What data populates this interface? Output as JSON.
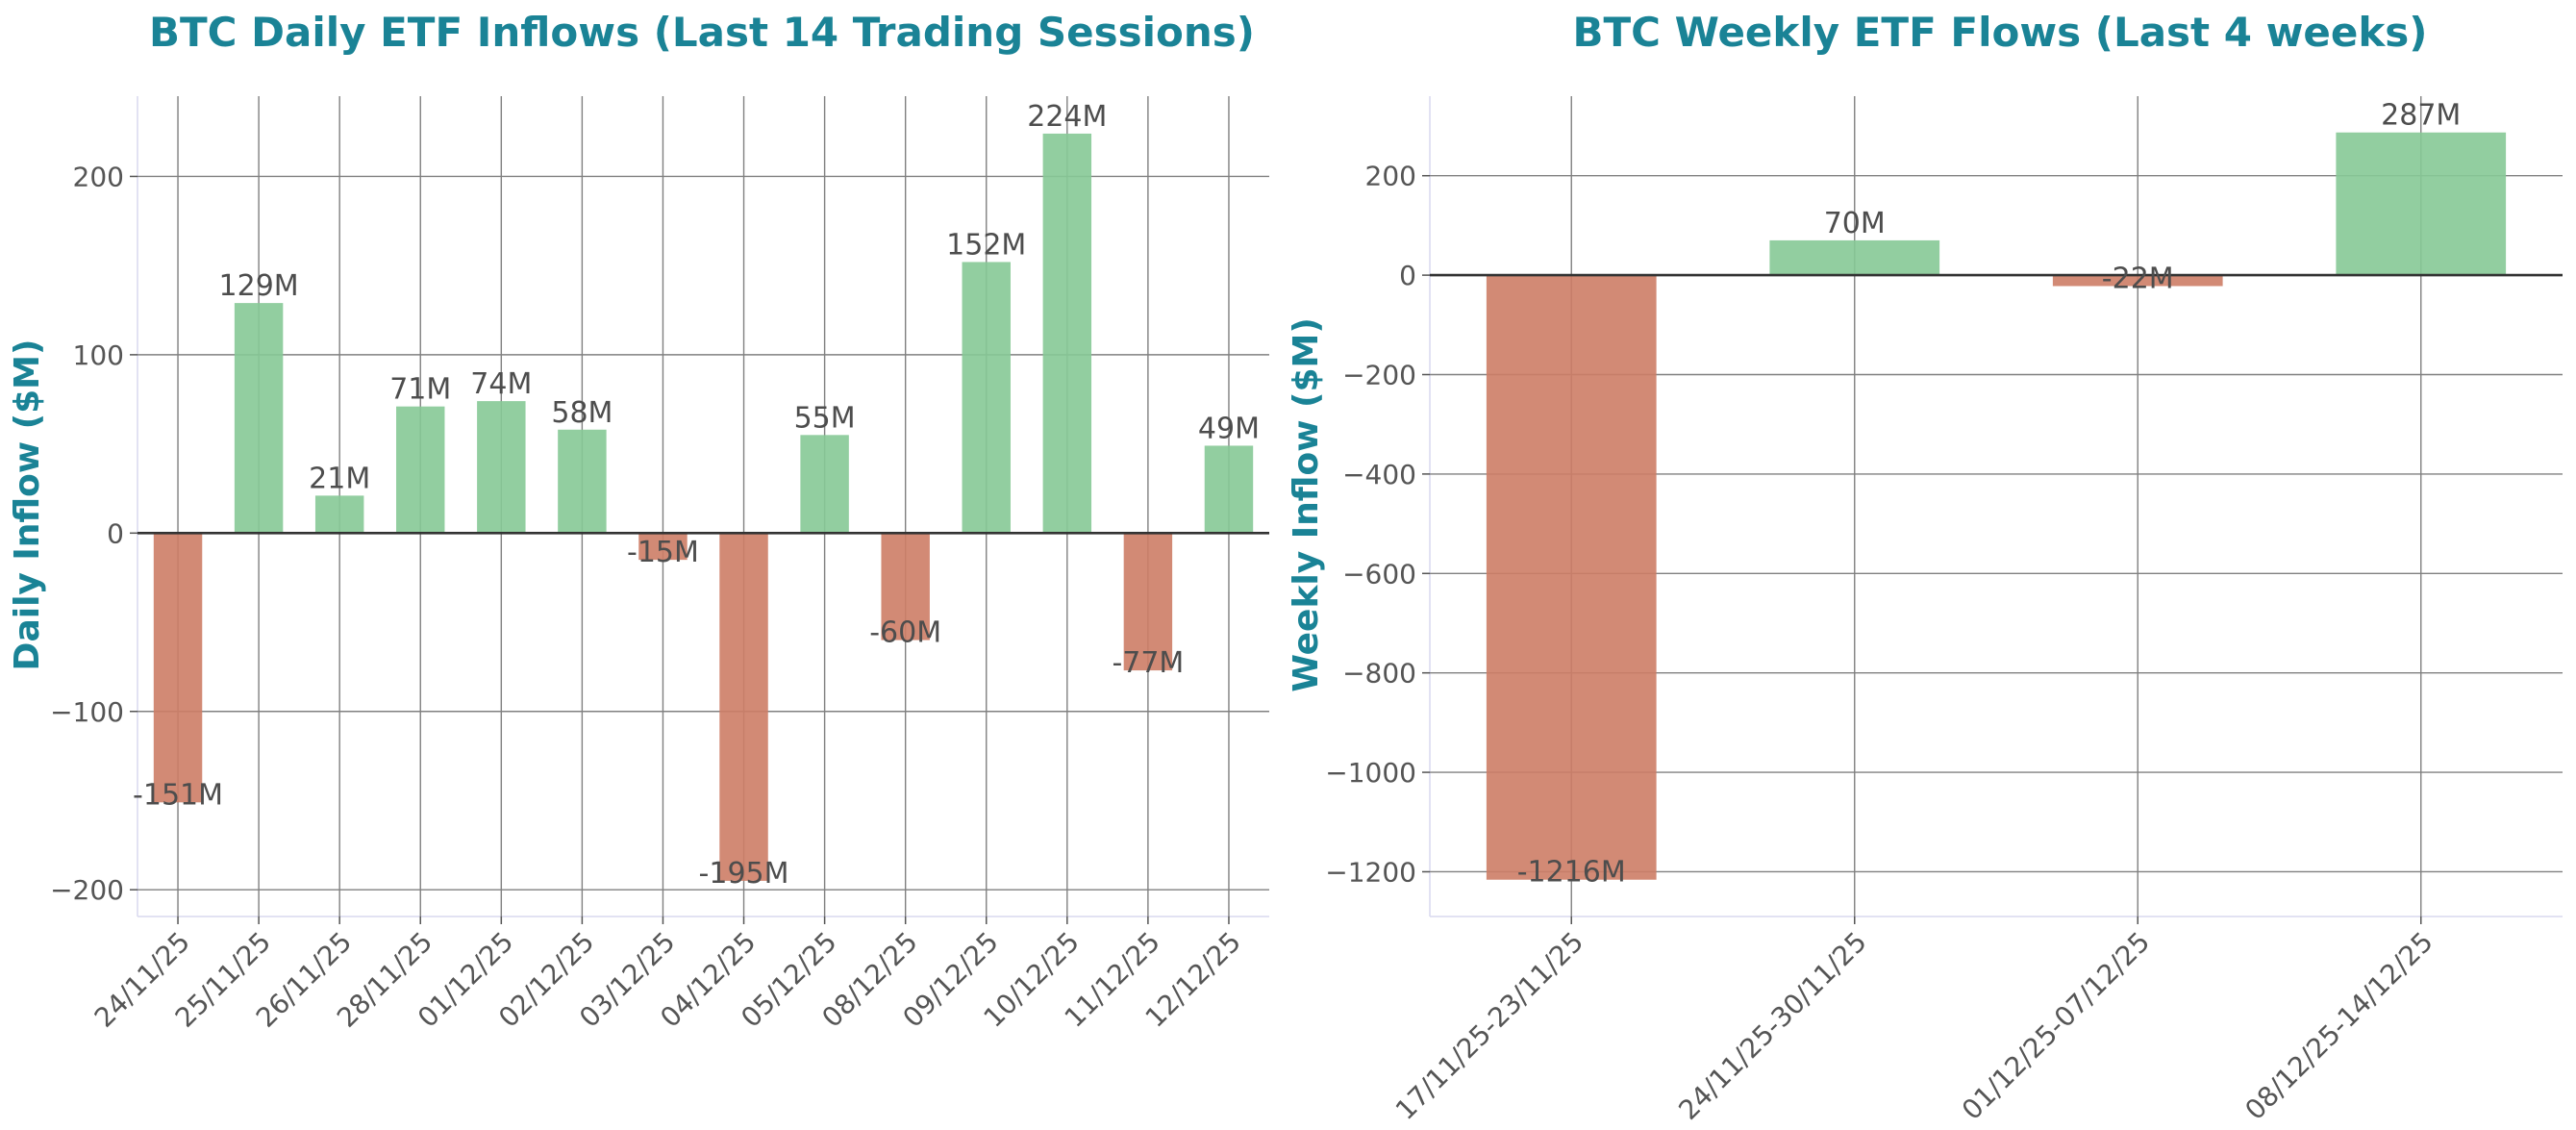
{
  "colors": {
    "positive": "#86c996",
    "negative": "#cd7d66",
    "title": "#1a8396"
  },
  "chart_data": [
    {
      "type": "bar",
      "title": "BTC Daily ETF Inflows (Last 14 Trading Sessions)",
      "xlabel": "",
      "ylabel": "Daily Inflow ($M)",
      "ylim": [
        -215,
        245
      ],
      "yticks": [
        -200,
        -100,
        0,
        100,
        200
      ],
      "grid": true,
      "categories": [
        "24/11/25",
        "25/11/25",
        "26/11/25",
        "28/11/25",
        "01/12/25",
        "02/12/25",
        "03/12/25",
        "04/12/25",
        "05/12/25",
        "08/12/25",
        "09/12/25",
        "10/12/25",
        "11/12/25",
        "12/12/25"
      ],
      "values": [
        -151,
        129,
        21,
        71,
        74,
        58,
        -15,
        -195,
        55,
        -60,
        152,
        224,
        -77,
        49
      ],
      "labels": [
        "-151M",
        "129M",
        "21M",
        "71M",
        "74M",
        "58M",
        "-15M",
        "-195M",
        "55M",
        "-60M",
        "152M",
        "224M",
        "-77M",
        "49M"
      ]
    },
    {
      "type": "bar",
      "title": "BTC Weekly ETF Flows (Last 4 weeks)",
      "xlabel": "",
      "ylabel": "Weekly Inflow ($M)",
      "ylim": [
        -1290,
        360
      ],
      "yticks": [
        -1200,
        -1000,
        -800,
        -600,
        -400,
        -200,
        0,
        200
      ],
      "grid": true,
      "categories": [
        "17/11/25-23/11/25",
        "24/11/25-30/11/25",
        "01/12/25-07/12/25",
        "08/12/25-14/12/25"
      ],
      "values": [
        -1216,
        70,
        -22,
        287
      ],
      "labels": [
        "-1216M",
        "70M",
        "-22M",
        "287M"
      ]
    }
  ]
}
